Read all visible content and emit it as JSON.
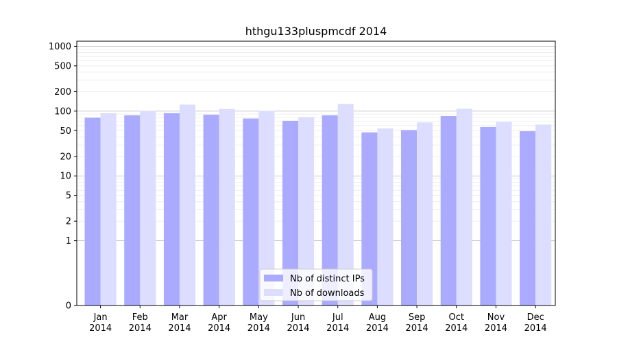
{
  "chart_data": {
    "type": "bar",
    "title": "hthgu133pluspmcdf 2014",
    "xlabel": "",
    "ylabel": "",
    "y_scale": "symlog",
    "y_ticks": [
      0,
      1,
      2,
      5,
      10,
      20,
      50,
      100,
      200,
      500,
      1000
    ],
    "y_tick_labels": [
      "0",
      "1",
      "2",
      "5",
      "10",
      "20",
      "50",
      "100",
      "200",
      "500",
      "1000"
    ],
    "ylim": [
      0,
      1200
    ],
    "grid": true,
    "legend_position": "bottom-center",
    "categories": [
      [
        "Jan",
        "2014"
      ],
      [
        "Feb",
        "2014"
      ],
      [
        "Mar",
        "2014"
      ],
      [
        "Apr",
        "2014"
      ],
      [
        "May",
        "2014"
      ],
      [
        "Jun",
        "2014"
      ],
      [
        "Jul",
        "2014"
      ],
      [
        "Aug",
        "2014"
      ],
      [
        "Sep",
        "2014"
      ],
      [
        "Oct",
        "2014"
      ],
      [
        "Nov",
        "2014"
      ],
      [
        "Dec",
        "2014"
      ]
    ],
    "series": [
      {
        "name": "Nb of distinct IPs",
        "color": "#aaaaff",
        "values": [
          79,
          86,
          93,
          88,
          77,
          71,
          86,
          47,
          51,
          84,
          57,
          49
        ]
      },
      {
        "name": "Nb of downloads",
        "color": "#ddddff",
        "values": [
          93,
          101,
          126,
          108,
          101,
          81,
          129,
          54,
          67,
          109,
          68,
          62
        ]
      }
    ]
  }
}
